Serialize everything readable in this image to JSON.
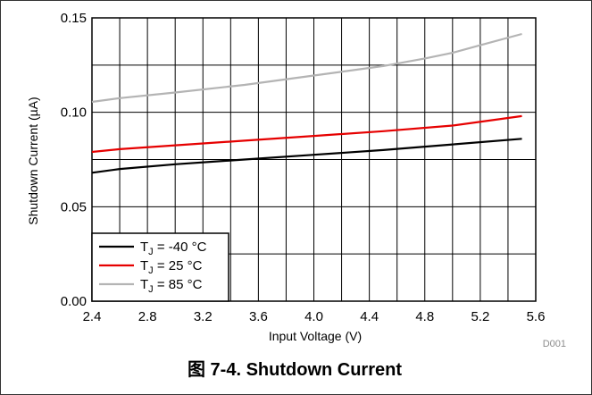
{
  "chart_data": {
    "type": "line",
    "xlabel": "Input Voltage (V)",
    "ylabel": "Shutdown Current (µA)",
    "xlim": [
      2.4,
      5.6
    ],
    "ylim": [
      0.0,
      0.15
    ],
    "x_ticks": [
      "2.4",
      "2.8",
      "3.2",
      "3.6",
      "4.0",
      "4.4",
      "4.8",
      "5.2",
      "5.6"
    ],
    "y_ticks": [
      "0.00",
      "0.05",
      "0.10",
      "0.15"
    ],
    "grid": true,
    "legend_position": "bottom-left",
    "figure_code": "D001",
    "caption": "图 7-4. Shutdown Current",
    "series": [
      {
        "name": "-40 °C",
        "color": "#000000",
        "x": [
          2.4,
          2.6,
          3.0,
          3.5,
          4.0,
          4.5,
          5.0,
          5.5
        ],
        "y": [
          0.068,
          0.07,
          0.0725,
          0.075,
          0.0775,
          0.08,
          0.083,
          0.086
        ]
      },
      {
        "name": "25 °C",
        "color": "#e60000",
        "x": [
          2.4,
          2.6,
          3.0,
          3.5,
          4.0,
          4.5,
          5.0,
          5.5
        ],
        "y": [
          0.079,
          0.0805,
          0.0825,
          0.085,
          0.0875,
          0.09,
          0.093,
          0.098
        ]
      },
      {
        "name": "85 °C",
        "color": "#b4b4b4",
        "x": [
          2.4,
          2.6,
          3.0,
          3.5,
          4.0,
          4.5,
          4.8,
          5.0,
          5.2,
          5.5
        ],
        "y": [
          0.1055,
          0.1075,
          0.1105,
          0.1145,
          0.1195,
          0.1245,
          0.1285,
          0.1315,
          0.1355,
          0.1415
        ]
      }
    ]
  }
}
